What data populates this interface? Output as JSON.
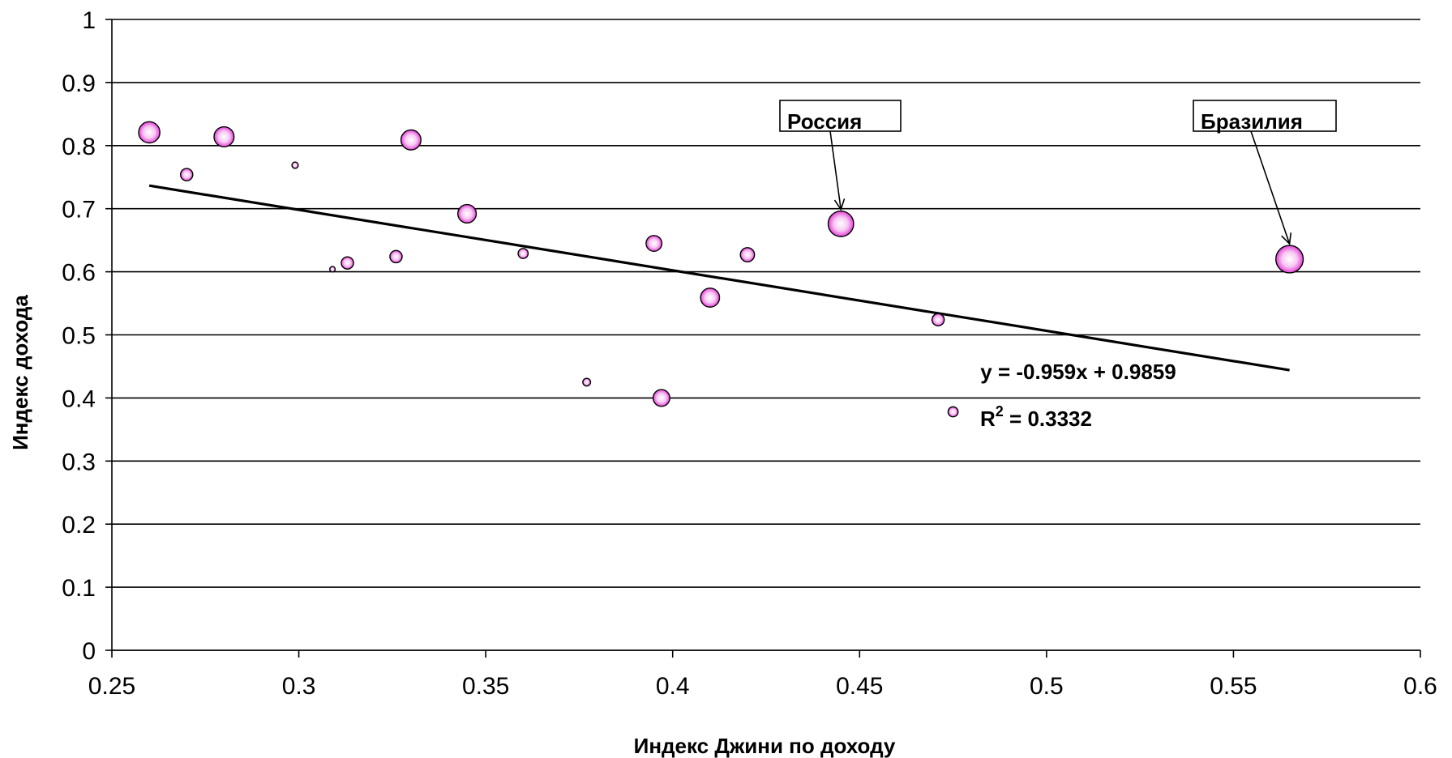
{
  "chart_data": {
    "type": "scatter",
    "title": "",
    "xlabel": "Индекс Джини по доходу",
    "ylabel": "Индекс дохода",
    "xlim": [
      0.25,
      0.6
    ],
    "ylim": [
      0,
      1
    ],
    "x_ticks": [
      "0.25",
      "0.3",
      "0.35",
      "0.4",
      "0.45",
      "0.5",
      "0.55",
      "0.6"
    ],
    "y_ticks": [
      "0",
      "0.1",
      "0.2",
      "0.3",
      "0.4",
      "0.5",
      "0.6",
      "0.7",
      "0.8",
      "0.9",
      "1"
    ],
    "grid": "horizontal",
    "bubble_color": "#ee44dd",
    "points": [
      {
        "x": 0.26,
        "y": 0.821,
        "size": 4.5
      },
      {
        "x": 0.27,
        "y": 0.754,
        "size": 1.5
      },
      {
        "x": 0.28,
        "y": 0.814,
        "size": 4.0
      },
      {
        "x": 0.299,
        "y": 0.769,
        "size": 0.4
      },
      {
        "x": 0.309,
        "y": 0.604,
        "size": 0.3
      },
      {
        "x": 0.313,
        "y": 0.614,
        "size": 1.5
      },
      {
        "x": 0.326,
        "y": 0.624,
        "size": 1.5
      },
      {
        "x": 0.33,
        "y": 0.809,
        "size": 4.0
      },
      {
        "x": 0.345,
        "y": 0.692,
        "size": 3.4
      },
      {
        "x": 0.36,
        "y": 0.629,
        "size": 1.0
      },
      {
        "x": 0.377,
        "y": 0.425,
        "size": 0.6
      },
      {
        "x": 0.395,
        "y": 0.645,
        "size": 2.5
      },
      {
        "x": 0.397,
        "y": 0.4,
        "size": 2.8
      },
      {
        "x": 0.41,
        "y": 0.559,
        "size": 3.6
      },
      {
        "x": 0.42,
        "y": 0.627,
        "size": 2.0
      },
      {
        "x": 0.445,
        "y": 0.676,
        "size": 6.5
      },
      {
        "x": 0.471,
        "y": 0.524,
        "size": 1.5
      },
      {
        "x": 0.475,
        "y": 0.378,
        "size": 1.0
      },
      {
        "x": 0.565,
        "y": 0.62,
        "size": 7.5
      }
    ],
    "trendline": {
      "slope": -0.959,
      "intercept": 0.9859,
      "x_range": [
        0.26,
        0.565
      ],
      "equation": "y = -0.959x + 0.9859",
      "r2_label": "R",
      "r2_sup": "2",
      "r2_value": " = 0.3332"
    },
    "annotations": [
      {
        "label": "Россия",
        "target_index": 15
      },
      {
        "label": "Бразилия",
        "target_index": 18
      }
    ]
  }
}
